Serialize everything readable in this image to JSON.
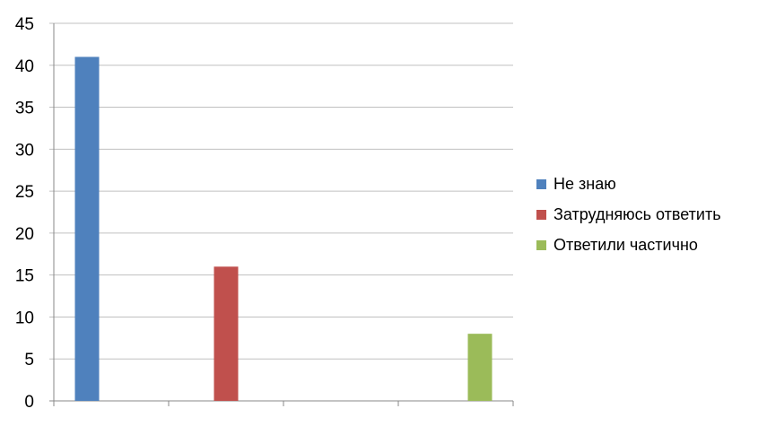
{
  "chart_data": {
    "type": "bar",
    "categories": [
      "",
      "",
      "",
      ""
    ],
    "series": [
      {
        "name": "Не знаю",
        "color": "#4f81bd",
        "values": [
          41,
          0,
          0,
          0
        ]
      },
      {
        "name": "Затрудняюсь ответить",
        "color": "#c0504d",
        "values": [
          0,
          16,
          0,
          0
        ]
      },
      {
        "name": "Ответили частично",
        "color": "#9bbb59",
        "values": [
          0,
          0,
          0,
          8
        ]
      }
    ],
    "ylim": [
      0,
      45
    ],
    "yticks": [
      "0",
      "5",
      "10",
      "15",
      "20",
      "25",
      "30",
      "35",
      "40",
      "45"
    ],
    "grid": true,
    "legend": "right",
    "title": "",
    "xlabel": "",
    "ylabel": ""
  }
}
